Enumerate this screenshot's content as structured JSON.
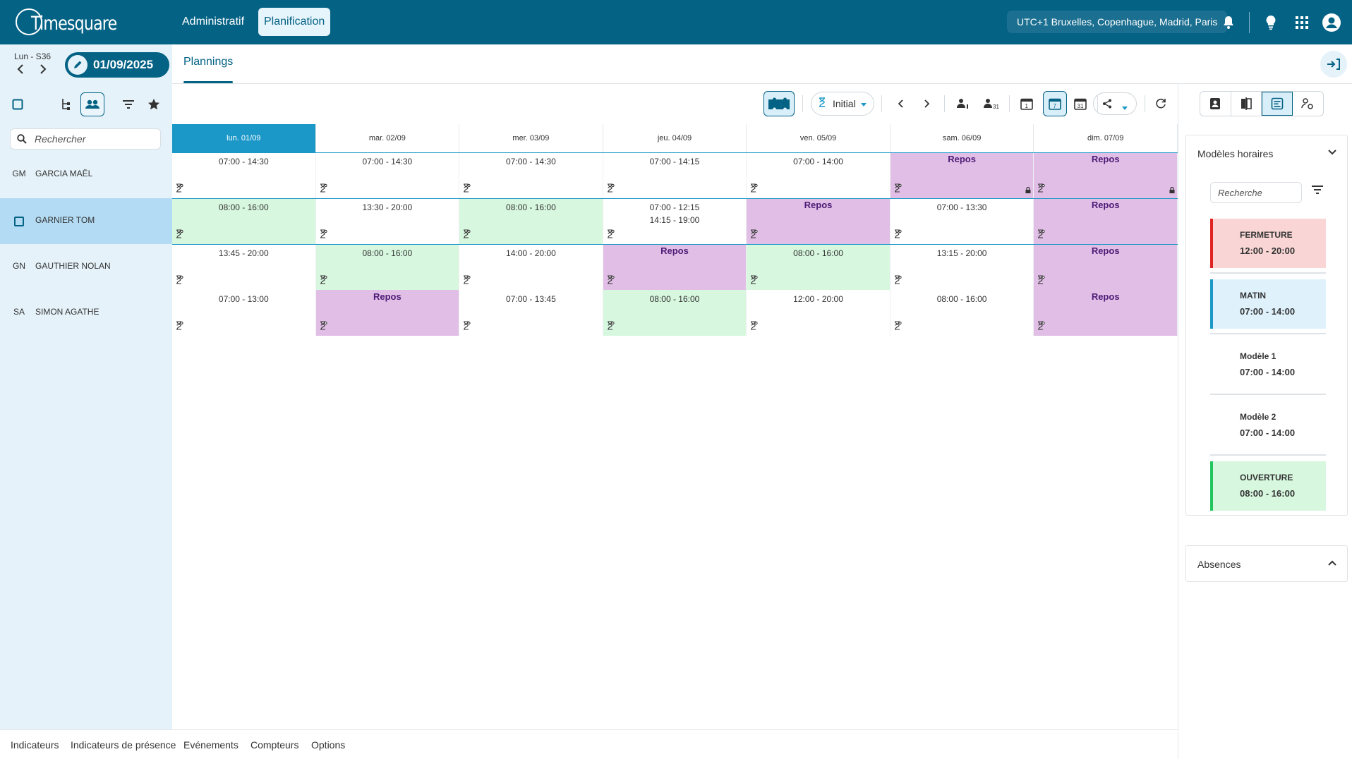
{
  "app": {
    "logo_text": "Timesquare"
  },
  "topbar": {
    "nav": [
      {
        "label": "Administratif"
      },
      {
        "label": "Planification"
      }
    ],
    "timezone": "UTC+1 Bruxelles, Copenhague, Madrid, Paris",
    "icons": [
      "bell-icon",
      "lightbulb-icon",
      "apps-grid-icon",
      "account-icon"
    ]
  },
  "subheader": {
    "week_label": "Lun - S36",
    "date": "01/09/2025",
    "tab": "Plannings"
  },
  "left_panel": {
    "search_placeholder": "Rechercher",
    "employees": [
      {
        "initials": "GM",
        "name": "GARCIA MAËL",
        "selected": false
      },
      {
        "initials": "",
        "name": "GARNIER TOM",
        "selected": true
      },
      {
        "initials": "GN",
        "name": "GAUTHIER NOLAN",
        "selected": false
      },
      {
        "initials": "SA",
        "name": "SIMON AGATHE",
        "selected": false
      }
    ]
  },
  "toolbar": {
    "version_label": "Initial"
  },
  "grid": {
    "days": [
      {
        "label": "lun. 01/09",
        "today": true
      },
      {
        "label": "mar. 02/09",
        "today": false
      },
      {
        "label": "mer. 03/09",
        "today": false
      },
      {
        "label": "jeu. 04/09",
        "today": false
      },
      {
        "label": "ven. 05/09",
        "today": false
      },
      {
        "label": "sam. 06/09",
        "today": false
      },
      {
        "label": "dim. 07/09",
        "today": false
      }
    ],
    "rows": [
      [
        {
          "text": "07:00 - 14:30",
          "type": "plain"
        },
        {
          "text": "07:00 - 14:30",
          "type": "plain"
        },
        {
          "text": "07:00 - 14:30",
          "type": "plain"
        },
        {
          "text": "07:00 - 14:15",
          "type": "plain"
        },
        {
          "text": "07:00 - 14:00",
          "type": "plain"
        },
        {
          "text": "Repos",
          "type": "repos",
          "locked": true
        },
        {
          "text": "Repos",
          "type": "repos",
          "locked": true
        }
      ],
      [
        {
          "text": "08:00 - 16:00",
          "type": "green"
        },
        {
          "text": "13:30 - 20:00",
          "type": "plain"
        },
        {
          "text": "08:00 - 16:00",
          "type": "green"
        },
        {
          "text": "07:00 - 12:15",
          "text2": "14:15 - 19:00",
          "type": "plain"
        },
        {
          "text": "Repos",
          "type": "repos"
        },
        {
          "text": "07:00 - 13:30",
          "type": "plain"
        },
        {
          "text": "Repos",
          "type": "repos"
        }
      ],
      [
        {
          "text": "13:45 - 20:00",
          "type": "plain"
        },
        {
          "text": "08:00 - 16:00",
          "type": "green"
        },
        {
          "text": "14:00 - 20:00",
          "type": "plain"
        },
        {
          "text": "Repos",
          "type": "repos"
        },
        {
          "text": "08:00 - 16:00",
          "type": "green"
        },
        {
          "text": "13:15 - 20:00",
          "type": "plain"
        },
        {
          "text": "Repos",
          "type": "repos"
        }
      ],
      [
        {
          "text": "07:00 - 13:00",
          "type": "plain"
        },
        {
          "text": "Repos",
          "type": "repos"
        },
        {
          "text": "07:00 - 13:45",
          "type": "plain"
        },
        {
          "text": "08:00 - 16:00",
          "type": "green"
        },
        {
          "text": "12:00 - 20:00",
          "type": "plain"
        },
        {
          "text": "08:00 - 16:00",
          "type": "plain"
        },
        {
          "text": "Repos",
          "type": "repos"
        }
      ]
    ]
  },
  "bottom_tabs": [
    "Indicateurs",
    "Indicateurs de présence",
    "Evénements",
    "Compteurs",
    "Options"
  ],
  "right_panel": {
    "models_title": "Modèles horaires",
    "search_placeholder": "Recherche",
    "models": [
      {
        "name": "FERMETURE",
        "time": "12:00 - 20:00",
        "bg": "#f9d6d5",
        "bar": "#e02424"
      },
      {
        "name": "MATIN",
        "time": "07:00 - 14:00",
        "bg": "#dff2fc",
        "bar": "#1c98c8"
      },
      {
        "name": "Modèle 1",
        "time": "07:00 - 14:00",
        "bg": "#ffffff",
        "bar": "#ffffff"
      },
      {
        "name": "Modèle 2",
        "time": "07:00 - 14:00",
        "bg": "#ffffff",
        "bar": "#ffffff"
      },
      {
        "name": "OUVERTURE",
        "time": "08:00 - 16:00",
        "bg": "#d7f7df",
        "bar": "#22c55e"
      }
    ],
    "absences_title": "Absences"
  },
  "colors": {
    "primary": "#046285",
    "today": "#1c98c8",
    "green_shift": "#d7f7df",
    "repos": "#e0bee6",
    "repos_text": "#4e1b76"
  }
}
